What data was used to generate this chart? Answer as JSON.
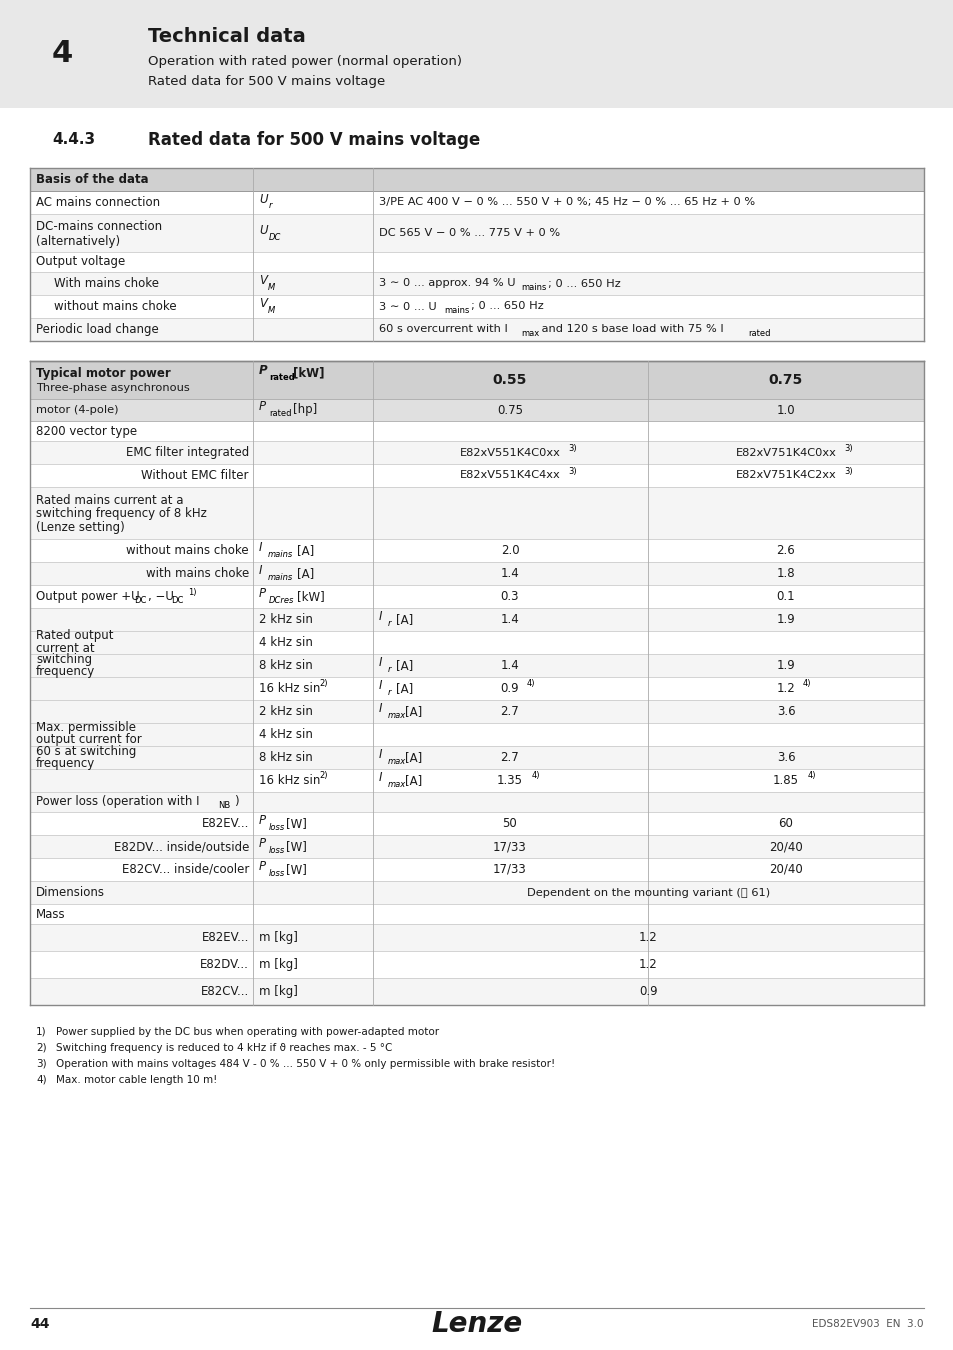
{
  "page_header_num": "4",
  "page_header_title": "Technical data",
  "page_header_sub1": "Operation with rated power (normal operation)",
  "page_header_sub2": "Rated data for 500 V mains voltage",
  "section_num": "4.4.3",
  "section_title": "Rated data for 500 V mains voltage",
  "footnotes": [
    "Power supplied by the DC bus when operating with power-adapted motor",
    "Switching frequency is reduced to 4 kHz if ϑ reaches max. - 5 °C",
    "Operation with mains voltages 484 V - 0 % ... 550 V + 0 % only permissible with brake resistor!",
    "Max. motor cable length 10 m!"
  ],
  "footer_page": "44",
  "footer_doc": "EDS82EV903  EN  3.0"
}
